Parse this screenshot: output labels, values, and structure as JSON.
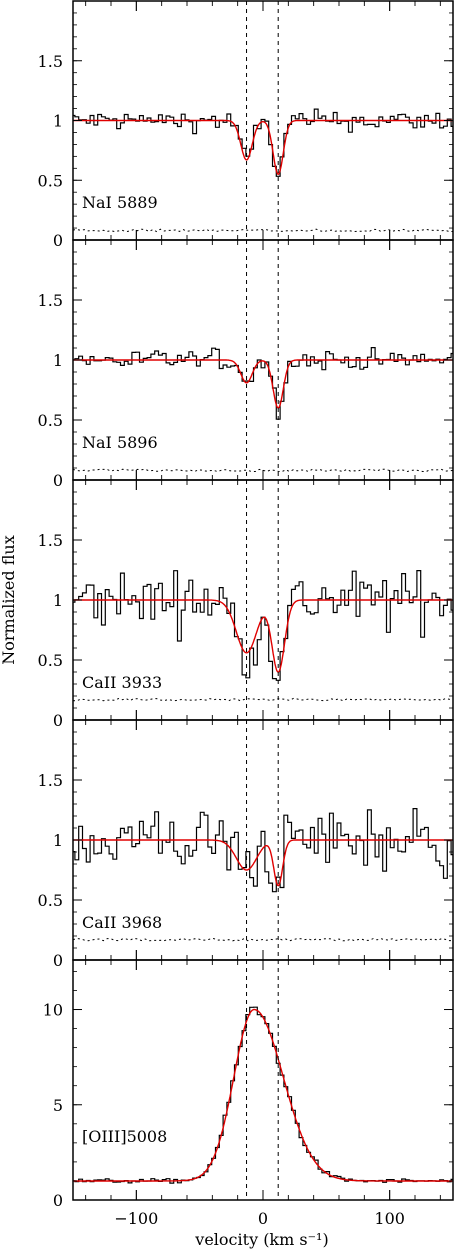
{
  "figure": {
    "ylabel": "Normalized flux",
    "xlabel": "velocity (km s⁻¹)"
  },
  "colors": {
    "data": "#000000",
    "fit": "#e00000",
    "error": "#000000"
  },
  "chart_data": {
    "type": "line",
    "x_range": [
      -150,
      150
    ],
    "x_ticks": [
      -100,
      0,
      100
    ],
    "x_tick_labels": [
      "−100",
      "0",
      "100"
    ],
    "component_velocities": [
      -13,
      12
    ],
    "panels": [
      {
        "label": "NaI 5889",
        "ylim": [
          0,
          2
        ],
        "y_ticks": [
          0,
          0.5,
          1,
          1.5
        ],
        "y_tick_labels": [
          "0",
          "0.5",
          "1",
          "1.5"
        ],
        "continuum": 1.0,
        "components": [
          {
            "v": -13,
            "depth": 0.33,
            "sigma": 4.5
          },
          {
            "v": 12,
            "depth": 0.45,
            "sigma": 4.0
          }
        ],
        "noise": 0.06,
        "error_level": 0.08,
        "series": [
          {
            "values": []
          },
          {
            "values": []
          },
          {
            "values": []
          }
        ]
      },
      {
        "label": "NaI 5896",
        "ylim": [
          0,
          2
        ],
        "y_ticks": [
          0,
          0.5,
          1,
          1.5
        ],
        "y_tick_labels": [
          "0",
          "0.5",
          "1",
          "1.5"
        ],
        "continuum": 1.0,
        "components": [
          {
            "v": -13,
            "depth": 0.19,
            "sigma": 4.5
          },
          {
            "v": 12,
            "depth": 0.4,
            "sigma": 4.0
          }
        ],
        "noise": 0.06,
        "error_level": 0.08,
        "series": [
          {
            "values": []
          },
          {
            "values": []
          },
          {
            "values": []
          }
        ]
      },
      {
        "label": "CaII 3933",
        "ylim": [
          0,
          2
        ],
        "y_ticks": [
          0,
          0.5,
          1,
          1.5
        ],
        "y_tick_labels": [
          "0",
          "0.5",
          "1",
          "1.5"
        ],
        "continuum": 1.0,
        "components": [
          {
            "v": -13,
            "depth": 0.44,
            "sigma": 8.0
          },
          {
            "v": 12,
            "depth": 0.6,
            "sigma": 5.0
          }
        ],
        "noise": 0.17,
        "error_level": 0.17,
        "series": [
          {
            "values": []
          },
          {
            "values": []
          },
          {
            "values": []
          }
        ]
      },
      {
        "label": "CaII 3968",
        "ylim": [
          0,
          2
        ],
        "y_ticks": [
          0,
          0.5,
          1,
          1.5
        ],
        "y_tick_labels": [
          "0",
          "0.5",
          "1",
          "1.5"
        ],
        "continuum": 1.0,
        "components": [
          {
            "v": -13,
            "depth": 0.25,
            "sigma": 8.0
          },
          {
            "v": 12,
            "depth": 0.38,
            "sigma": 3.5
          }
        ],
        "noise": 0.2,
        "error_level": 0.17,
        "series": [
          {
            "values": []
          },
          {
            "values": []
          },
          {
            "values": []
          }
        ]
      },
      {
        "label": "[OIII]5008",
        "ylim": [
          0,
          12.6
        ],
        "y_ticks": [
          0,
          5,
          10
        ],
        "y_tick_labels": [
          "0",
          "5",
          "10"
        ],
        "emission": {
          "peak_v": -7,
          "base": 1.0,
          "amp": 9.0,
          "sigma_left": 16,
          "sigma_right": 23
        },
        "noise": 0.08,
        "series": [
          {
            "values": []
          },
          {
            "values": []
          }
        ]
      }
    ]
  }
}
